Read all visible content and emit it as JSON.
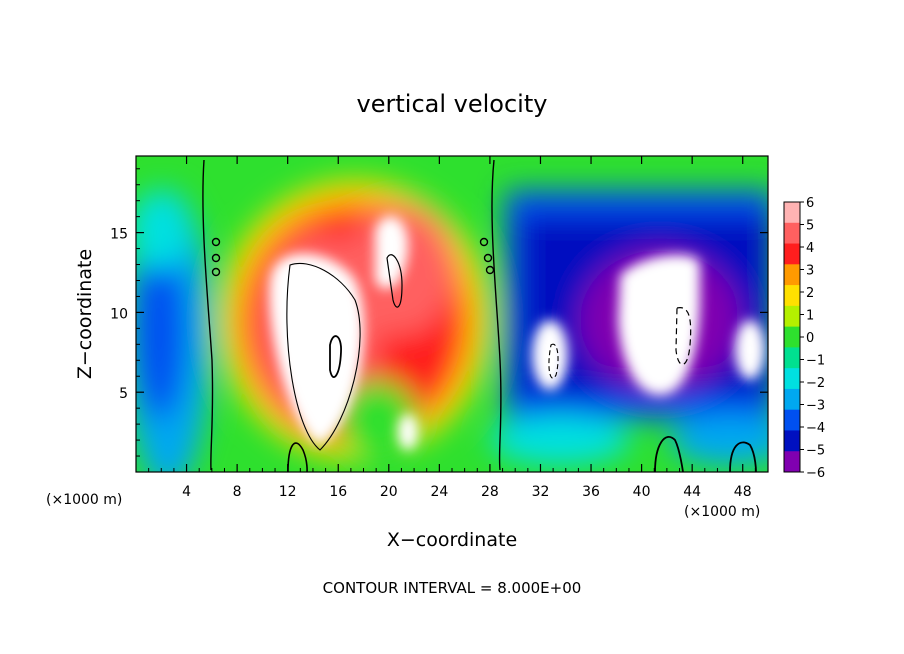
{
  "chart_data": {
    "type": "heatmap",
    "title": "vertical velocity",
    "xlabel": "X−coordinate",
    "ylabel": "Z−coordinate",
    "x_unit_left": "(×1000 m)",
    "x_unit_right": "(×1000 m)",
    "footer": "CONTOUR INTERVAL = 8.000E+00",
    "xlim": [
      0,
      50
    ],
    "ylim": [
      0,
      19.8
    ],
    "x_ticks": [
      4,
      8,
      12,
      16,
      20,
      24,
      28,
      32,
      36,
      40,
      44,
      48
    ],
    "x_tick_labels": [
      "4",
      "8",
      "12",
      "16",
      "20",
      "24",
      "28",
      "32",
      "36",
      "40",
      "44",
      "48"
    ],
    "y_ticks": [
      5,
      10,
      15
    ],
    "y_tick_labels": [
      "5",
      "10",
      "15"
    ],
    "colorbar": {
      "min": -6,
      "max": 6,
      "labels": [
        "6",
        "5",
        "4",
        "3",
        "2",
        "1",
        "0",
        "−1",
        "−2",
        "−3",
        "−4",
        "−5",
        "−6"
      ],
      "colors": [
        "#ffb3b3",
        "#ff6060",
        "#ff1e1e",
        "#ff9a00",
        "#ffe000",
        "#b4f000",
        "#2ee02e",
        "#00e090",
        "#00e0e0",
        "#00a8f0",
        "#0050f0",
        "#0010c0",
        "#8000b0"
      ]
    },
    "field_features": [
      {
        "x": 16,
        "z": 9,
        "value": 10,
        "note": "strong updraft core (exceeds colorbar max)"
      },
      {
        "x": 21,
        "z": 14,
        "value": 8,
        "note": "upper updraft core"
      },
      {
        "x": 42,
        "z": 9,
        "value": -8,
        "note": "strong downdraft core (below colorbar min)"
      },
      {
        "x": 48,
        "z": 7,
        "value": -7,
        "note": "downdraft core"
      },
      {
        "x": 1.5,
        "z": 10,
        "value": -4,
        "note": "weak downdraft region"
      }
    ],
    "grid": false
  }
}
